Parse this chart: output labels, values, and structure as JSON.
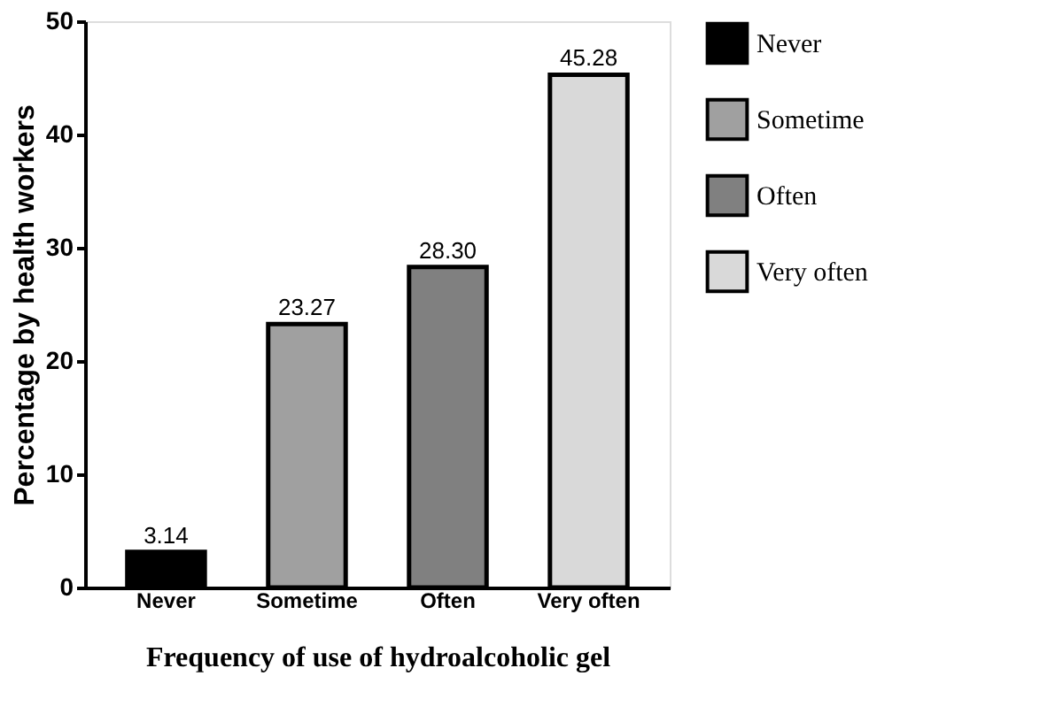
{
  "chart_data": {
    "type": "bar",
    "categories": [
      "Never",
      "Sometime",
      "Often",
      "Very often"
    ],
    "series": [
      {
        "name": "Never",
        "color": "#000000",
        "values": [
          3.14,
          null,
          null,
          null
        ],
        "value_labels": [
          "3.14",
          null,
          null,
          null
        ]
      },
      {
        "name": "Sometime",
        "color": "#a0a0a0",
        "values": [
          null,
          23.27,
          null,
          null
        ],
        "value_labels": [
          null,
          "23.27",
          null,
          null
        ]
      },
      {
        "name": "Often",
        "color": "#808080",
        "values": [
          null,
          null,
          28.3,
          null
        ],
        "value_labels": [
          null,
          null,
          "28.30",
          null
        ]
      },
      {
        "name": "Very often",
        "color": "#d9d9d9",
        "values": [
          null,
          null,
          null,
          45.28
        ],
        "value_labels": [
          null,
          null,
          null,
          "45.28"
        ]
      }
    ],
    "xlabel": "Frequency of use of hydroalcoholic gel",
    "ylabel": "Percentage by health workers",
    "ylim": [
      0,
      50
    ],
    "yticks": [
      0,
      10,
      20,
      30,
      40,
      50
    ],
    "legend": "right",
    "grid": false
  }
}
